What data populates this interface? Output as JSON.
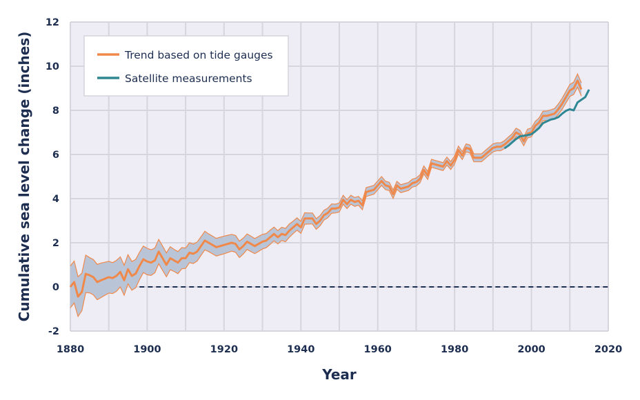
{
  "chart_data": {
    "type": "line",
    "title": "",
    "xlabel": "Year",
    "ylabel": "Cumulative sea level change (inches)",
    "xlim": [
      1880,
      2020
    ],
    "ylim": [
      -2,
      12
    ],
    "x_ticks": [
      1880,
      1900,
      1920,
      1940,
      1960,
      1980,
      2000,
      2020
    ],
    "y_ticks": [
      -2,
      0,
      2,
      4,
      6,
      8,
      10,
      12
    ],
    "x_tick_labels": [
      "1880",
      "1900",
      "1920",
      "1940",
      "1960",
      "1980",
      "2000",
      "2020"
    ],
    "y_tick_labels": [
      "-2",
      "0",
      "2",
      "4",
      "6",
      "8",
      "10",
      "12"
    ],
    "grid": true,
    "grid_step": {
      "x": 10,
      "y": 2
    },
    "legend_position": "top-left",
    "reference_line": {
      "y": 0,
      "x_start": 1898,
      "x_end": 2020,
      "style": "dashed",
      "color": "#1b2d52"
    },
    "series": [
      {
        "name": "Trend based on tide gauges",
        "color": "#f0884a",
        "band_color": "#b9c5d7",
        "x": [
          1880,
          1881,
          1882,
          1883,
          1884,
          1885,
          1886,
          1887,
          1888,
          1889,
          1890,
          1891,
          1892,
          1893,
          1894,
          1895,
          1896,
          1897,
          1898,
          1899,
          1900,
          1901,
          1902,
          1903,
          1904,
          1905,
          1906,
          1907,
          1908,
          1909,
          1910,
          1911,
          1912,
          1913,
          1914,
          1915,
          1916,
          1917,
          1918,
          1919,
          1920,
          1921,
          1922,
          1923,
          1924,
          1925,
          1926,
          1927,
          1928,
          1929,
          1930,
          1931,
          1932,
          1933,
          1934,
          1935,
          1936,
          1937,
          1938,
          1939,
          1940,
          1941,
          1942,
          1943,
          1944,
          1945,
          1946,
          1947,
          1948,
          1949,
          1950,
          1951,
          1952,
          1953,
          1954,
          1955,
          1956,
          1957,
          1958,
          1959,
          1960,
          1961,
          1962,
          1963,
          1964,
          1965,
          1966,
          1967,
          1968,
          1969,
          1970,
          1971,
          1972,
          1973,
          1974,
          1975,
          1976,
          1977,
          1978,
          1979,
          1980,
          1981,
          1982,
          1983,
          1984,
          1985,
          1986,
          1987,
          1988,
          1989,
          1990,
          1991,
          1992,
          1993,
          1994,
          1995,
          1996,
          1997,
          1998,
          1999,
          2000,
          2001,
          2002,
          2003,
          2004,
          2005,
          2006,
          2007,
          2008,
          2009,
          2010,
          2011,
          2012,
          2013
        ],
        "y": [
          0.0,
          0.22,
          -0.44,
          -0.23,
          0.59,
          0.53,
          0.44,
          0.22,
          0.3,
          0.37,
          0.44,
          0.4,
          0.5,
          0.68,
          0.3,
          0.8,
          0.5,
          0.6,
          0.95,
          1.25,
          1.15,
          1.1,
          1.2,
          1.6,
          1.3,
          1.0,
          1.3,
          1.2,
          1.1,
          1.3,
          1.3,
          1.55,
          1.5,
          1.6,
          1.85,
          2.1,
          2.0,
          1.9,
          1.8,
          1.85,
          1.9,
          1.95,
          2.0,
          1.95,
          1.7,
          1.85,
          2.05,
          1.95,
          1.85,
          1.95,
          2.05,
          2.1,
          2.25,
          2.4,
          2.25,
          2.4,
          2.35,
          2.55,
          2.7,
          2.85,
          2.7,
          3.1,
          3.1,
          3.1,
          2.85,
          3.0,
          3.25,
          3.35,
          3.55,
          3.55,
          3.6,
          3.95,
          3.75,
          3.95,
          3.85,
          3.9,
          3.7,
          4.3,
          4.35,
          4.4,
          4.6,
          4.8,
          4.6,
          4.55,
          4.2,
          4.6,
          4.45,
          4.5,
          4.55,
          4.7,
          4.75,
          4.9,
          5.3,
          5.05,
          5.6,
          5.55,
          5.5,
          5.45,
          5.7,
          5.5,
          5.75,
          6.2,
          5.95,
          6.3,
          6.25,
          5.85,
          5.85,
          5.85,
          6.0,
          6.15,
          6.3,
          6.35,
          6.35,
          6.45,
          6.6,
          6.75,
          7.0,
          6.9,
          6.6,
          6.95,
          7.0,
          7.3,
          7.45,
          7.75,
          7.75,
          7.8,
          7.85,
          8.05,
          8.3,
          8.6,
          8.9,
          9.0,
          9.35,
          8.95
        ],
        "uncertainty": [
          0.95,
          0.95,
          0.9,
          0.85,
          0.85,
          0.8,
          0.8,
          0.8,
          0.78,
          0.75,
          0.72,
          0.7,
          0.7,
          0.68,
          0.68,
          0.66,
          0.65,
          0.64,
          0.62,
          0.6,
          0.6,
          0.58,
          0.56,
          0.55,
          0.55,
          0.54,
          0.52,
          0.5,
          0.5,
          0.48,
          0.46,
          0.45,
          0.44,
          0.43,
          0.42,
          0.42,
          0.4,
          0.4,
          0.4,
          0.4,
          0.4,
          0.39,
          0.38,
          0.38,
          0.37,
          0.36,
          0.35,
          0.35,
          0.34,
          0.34,
          0.33,
          0.32,
          0.32,
          0.31,
          0.3,
          0.3,
          0.3,
          0.3,
          0.28,
          0.28,
          0.27,
          0.26,
          0.25,
          0.25,
          0.24,
          0.23,
          0.22,
          0.22,
          0.21,
          0.2,
          0.2,
          0.2,
          0.2,
          0.2,
          0.2,
          0.2,
          0.2,
          0.2,
          0.2,
          0.2,
          0.2,
          0.2,
          0.19,
          0.19,
          0.19,
          0.18,
          0.18,
          0.18,
          0.18,
          0.18,
          0.18,
          0.18,
          0.18,
          0.18,
          0.18,
          0.18,
          0.18,
          0.18,
          0.18,
          0.18,
          0.18,
          0.18,
          0.18,
          0.18,
          0.18,
          0.18,
          0.18,
          0.18,
          0.18,
          0.18,
          0.18,
          0.18,
          0.18,
          0.18,
          0.19,
          0.19,
          0.19,
          0.2,
          0.2,
          0.2,
          0.2,
          0.2,
          0.21,
          0.21,
          0.22,
          0.22,
          0.23,
          0.24,
          0.25,
          0.26,
          0.27,
          0.28,
          0.3,
          0.3
        ]
      },
      {
        "name": "Satellite measurements",
        "color": "#2e8793",
        "x": [
          1993,
          1994,
          1995,
          1996,
          1997,
          1998,
          1999,
          2000,
          2001,
          2002,
          2003,
          2004,
          2005,
          2006,
          2007,
          2008,
          2009,
          2010,
          2011,
          2012,
          2013,
          2014,
          2015
        ],
        "y": [
          6.28,
          6.4,
          6.55,
          6.7,
          6.82,
          6.85,
          6.88,
          6.92,
          7.05,
          7.2,
          7.42,
          7.5,
          7.58,
          7.62,
          7.69,
          7.85,
          7.98,
          8.05,
          8.0,
          8.36,
          8.48,
          8.6,
          8.94
        ]
      }
    ]
  }
}
